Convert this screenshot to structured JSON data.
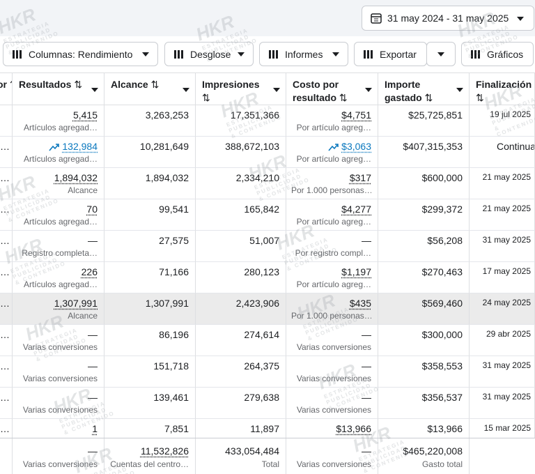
{
  "toolbar": {
    "date_range": "31 may 2024 - 31 may 2025",
    "buttons": [
      "Columnas: Rendimiento",
      "Desglose",
      "Informes",
      "Exportar",
      "Gráficos"
    ]
  },
  "table": {
    "headers": [
      "or",
      "Resultados",
      "Alcance",
      "Impresiones",
      "Costo por resultado",
      "Importe gastado",
      "Finalización"
    ],
    "rows": [
      {
        "cells": [
          {
            "main": "5,415",
            "sub": "Artículos agregad…"
          },
          {
            "main": "3,263,253"
          },
          {
            "main": "17,351,366"
          },
          {
            "main": "$4,751",
            "sub": "Por artículo agreg…"
          },
          {
            "main": "$25,725,851"
          },
          {
            "main": "19 jul 2025"
          }
        ]
      },
      {
        "lead": "…",
        "trending": true,
        "cells": [
          {
            "main": "132,984",
            "sub": "Artículos agregad…"
          },
          {
            "main": "10,281,649"
          },
          {
            "main": "388,672,103"
          },
          {
            "main": "$3,063",
            "sub": "Por artículo agreg…"
          },
          {
            "main": "$407,315,353"
          },
          {
            "main": "Continua"
          }
        ]
      },
      {
        "lead": "…",
        "cells": [
          {
            "main": "1,894,032",
            "sub": "Alcance"
          },
          {
            "main": "1,894,032"
          },
          {
            "main": "2,334,210"
          },
          {
            "main": "$317",
            "sub": "Por 1.000 personas…"
          },
          {
            "main": "$600,000"
          },
          {
            "main": "21 may 2025"
          }
        ]
      },
      {
        "lead": "…",
        "cells": [
          {
            "main": "70",
            "sub": "Artículos agregad…"
          },
          {
            "main": "99,541"
          },
          {
            "main": "165,842"
          },
          {
            "main": "$4,277",
            "sub": "Por artículo agreg…"
          },
          {
            "main": "$299,372"
          },
          {
            "main": "21 may 2025"
          }
        ]
      },
      {
        "lead": "…",
        "cells": [
          {
            "main": "—",
            "sub": "Registro completa…"
          },
          {
            "main": "27,575"
          },
          {
            "main": "51,007"
          },
          {
            "main": "—",
            "sub": "Por registro compl…"
          },
          {
            "main": "$56,208"
          },
          {
            "main": "31 may 2025"
          }
        ]
      },
      {
        "lead": "…",
        "cells": [
          {
            "main": "226",
            "sub": "Artículos agregad…"
          },
          {
            "main": "71,166"
          },
          {
            "main": "280,123"
          },
          {
            "main": "$1,197",
            "sub": "Por artículo agreg…"
          },
          {
            "main": "$270,463"
          },
          {
            "main": "17 may 2025"
          }
        ]
      },
      {
        "lead": "…",
        "highlight": true,
        "cells": [
          {
            "main": "1,307,991",
            "sub": "Alcance"
          },
          {
            "main": "1,307,991"
          },
          {
            "main": "2,423,906"
          },
          {
            "main": "$435",
            "sub": "Por 1.000 personas…"
          },
          {
            "main": "$569,460"
          },
          {
            "main": "24 may 2025"
          }
        ]
      },
      {
        "lead": "…",
        "cells": [
          {
            "main": "—",
            "sub": "Varias conversiones"
          },
          {
            "main": "86,196"
          },
          {
            "main": "274,614"
          },
          {
            "main": "—",
            "sub": "Varias conversiones"
          },
          {
            "main": "$300,000"
          },
          {
            "main": "29 abr 2025"
          }
        ]
      },
      {
        "lead": "…",
        "cells": [
          {
            "main": "—",
            "sub": "Varias conversiones"
          },
          {
            "main": "151,718"
          },
          {
            "main": "264,375"
          },
          {
            "main": "—",
            "sub": "Varias conversiones"
          },
          {
            "main": "$358,553"
          },
          {
            "main": "31 may 2025"
          }
        ]
      },
      {
        "lead": "…",
        "cells": [
          {
            "main": "—",
            "sub": "Varias conversiones"
          },
          {
            "main": "139,461"
          },
          {
            "main": "279,638"
          },
          {
            "main": "—",
            "sub": "Varias conversiones"
          },
          {
            "main": "$356,537"
          },
          {
            "main": "31 may 2025"
          }
        ]
      },
      {
        "lead": "…",
        "cells": [
          {
            "main": "1"
          },
          {
            "main": "7,851"
          },
          {
            "main": "11,897"
          },
          {
            "main": "$13,966"
          },
          {
            "main": "$13,966"
          },
          {
            "main": "15 mar 2025"
          }
        ]
      }
    ],
    "totals": [
      {
        "main": "—",
        "sub": "Varias conversiones"
      },
      {
        "main": "11,532,826",
        "sub": "Cuentas del centro…"
      },
      {
        "main": "433,054,484",
        "sub": "Total"
      },
      {
        "main": "—",
        "sub": "Varias conversiones"
      },
      {
        "main": "$465,220,008",
        "sub": "Gasto total"
      }
    ]
  },
  "watermark": {
    "logo": "HKR",
    "lines": [
      "ESTRATEGIA",
      "PUBLICIDAD",
      "& CONTENIDO"
    ]
  }
}
